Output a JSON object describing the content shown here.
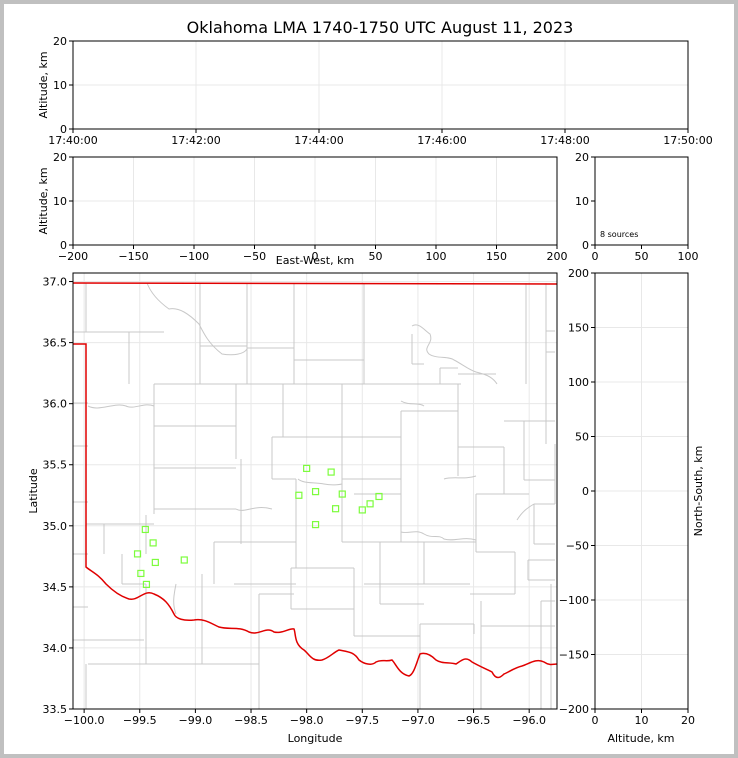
{
  "title": "Oklahoma LMA 1740-1750 UTC August 11, 2023",
  "colors": {
    "source": "#7cfc3c",
    "state_border": "#e00000",
    "county": "#c8c8c8",
    "grid": "#e8e8e8"
  },
  "chart_data": [
    {
      "id": "alt-time",
      "type": "scatter",
      "ylabel": "Altitude, km",
      "ylim": [
        0,
        20
      ],
      "yticks": [
        "0",
        "10",
        "20"
      ],
      "xticks": [
        "17:40:00",
        "17:42:00",
        "17:44:00",
        "17:46:00",
        "17:48:00",
        "17:50:00"
      ],
      "grid": true,
      "points": []
    },
    {
      "id": "alt-ew",
      "type": "scatter",
      "xlabel": "East-West, km",
      "ylabel": "Altitude, km",
      "xlim": [
        -200,
        200
      ],
      "ylim": [
        0,
        20
      ],
      "xticks": [
        "−200",
        "−150",
        "−100",
        "−50",
        "0",
        "50",
        "100",
        "150",
        "200"
      ],
      "yticks": [
        "0",
        "10",
        "20"
      ],
      "grid": true,
      "points": []
    },
    {
      "id": "histogram",
      "type": "bar",
      "xlim": [
        0,
        100
      ],
      "ylim": [
        0,
        20
      ],
      "xticks": [
        "0",
        "50",
        "100"
      ],
      "yticks": [
        "0",
        "10",
        "20"
      ],
      "annotation": "8 sources",
      "grid": false,
      "values": []
    },
    {
      "id": "plan-view",
      "type": "scatter",
      "xlabel": "Longitude",
      "ylabel": "Latitude",
      "xlim": [
        -100.1,
        -95.75
      ],
      "ylim": [
        33.5,
        37.07
      ],
      "xticks": [
        "−100.0",
        "−99.5",
        "−99.0",
        "−98.5",
        "−98.0",
        "−97.5",
        "−97.0",
        "−96.5",
        "−96.0"
      ],
      "yticks": [
        "33.5",
        "34.0",
        "34.5",
        "35.0",
        "35.5",
        "36.0",
        "36.5",
        "37.0"
      ],
      "grid": true,
      "points": [
        {
          "x": -99.45,
          "y": 34.97
        },
        {
          "x": -99.38,
          "y": 34.86
        },
        {
          "x": -99.52,
          "y": 34.77
        },
        {
          "x": -99.36,
          "y": 34.7
        },
        {
          "x": -99.49,
          "y": 34.61
        },
        {
          "x": -99.44,
          "y": 34.52
        },
        {
          "x": -99.1,
          "y": 34.72
        },
        {
          "x": -98.0,
          "y": 35.47
        },
        {
          "x": -97.78,
          "y": 35.44
        },
        {
          "x": -98.07,
          "y": 35.25
        },
        {
          "x": -97.92,
          "y": 35.28
        },
        {
          "x": -97.68,
          "y": 35.26
        },
        {
          "x": -97.35,
          "y": 35.24
        },
        {
          "x": -97.43,
          "y": 35.18
        },
        {
          "x": -97.74,
          "y": 35.14
        },
        {
          "x": -97.5,
          "y": 35.13
        },
        {
          "x": -97.92,
          "y": 35.01
        }
      ]
    },
    {
      "id": "alt-ns",
      "type": "scatter",
      "xlabel": "Altitude, km",
      "ylabel": "North-South, km",
      "xlim": [
        0,
        20
      ],
      "ylim": [
        -200,
        200
      ],
      "xticks": [
        "0",
        "10",
        "20"
      ],
      "yticks": [
        "−200",
        "−150",
        "−100",
        "−50",
        "0",
        "50",
        "100",
        "150",
        "200"
      ],
      "grid": true,
      "points": []
    }
  ]
}
